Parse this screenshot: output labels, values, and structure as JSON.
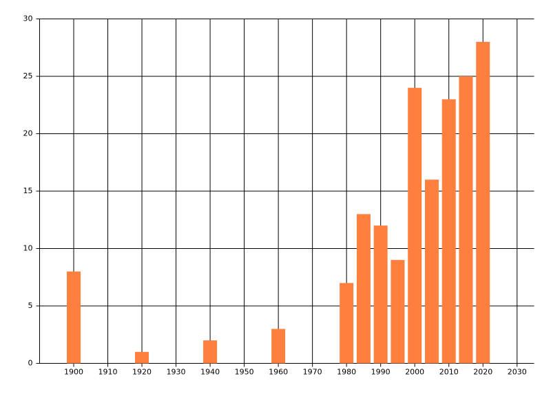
{
  "chart_data": {
    "type": "bar",
    "x": [
      1900,
      1920,
      1940,
      1960,
      1980,
      1985,
      1990,
      1995,
      2000,
      2005,
      2010,
      2015,
      2020
    ],
    "values": [
      8,
      1,
      2,
      3,
      7,
      13,
      12,
      9,
      24,
      16,
      23,
      25,
      28
    ],
    "color": "#ff7f3f",
    "xlim": [
      1890,
      2035
    ],
    "xticks": [
      1900,
      1910,
      1920,
      1930,
      1940,
      1950,
      1960,
      1970,
      1980,
      1990,
      2000,
      2010,
      2020,
      2030
    ],
    "ylim": [
      0,
      30
    ],
    "yticks": [
      0,
      5,
      10,
      15,
      20,
      25,
      30
    ],
    "grid": true
  }
}
